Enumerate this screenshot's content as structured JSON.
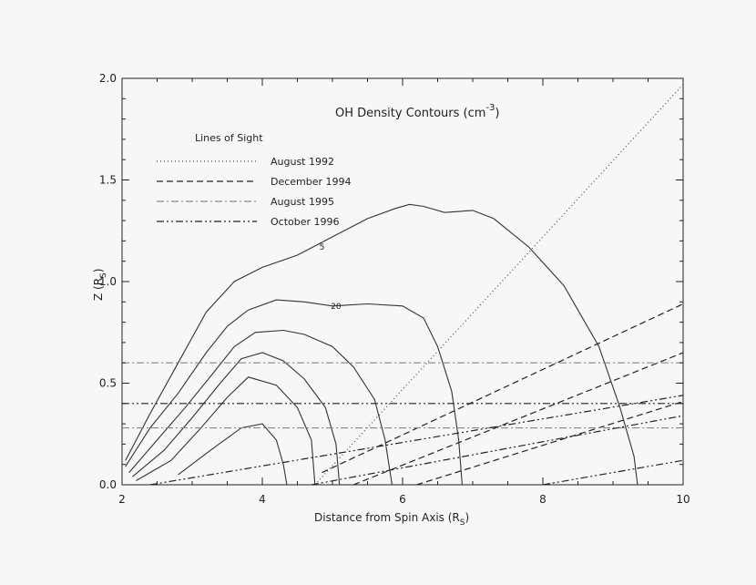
{
  "chart_data": {
    "type": "line",
    "title": "OH Density Contours (cm",
    "title_superscript": "-3",
    "xlabel": "Distance from Spin Axis (R",
    "xlabel_subscript": "S",
    "xlabel_close": ")",
    "ylabel": "Z (R",
    "ylabel_subscript": "S",
    "ylabel_close": ")",
    "xlim": [
      2,
      10
    ],
    "ylim": [
      0,
      2.0
    ],
    "x_ticks": [
      {
        "v": 2,
        "label": "2"
      },
      {
        "v": 4,
        "label": "4"
      },
      {
        "v": 6,
        "label": "6"
      },
      {
        "v": 8,
        "label": "8"
      },
      {
        "v": 10,
        "label": "10"
      }
    ],
    "y_ticks": [
      {
        "v": 0,
        "label": "0.0"
      },
      {
        "v": 0.5,
        "label": "0.5"
      },
      {
        "v": 1.0,
        "label": "1.0"
      },
      {
        "v": 1.5,
        "label": "1.5"
      },
      {
        "v": 2.0,
        "label": "2.0"
      }
    ],
    "grid": false,
    "legend_title": "Lines of Sight",
    "legend_placement": "top-left",
    "lines_of_sight": [
      {
        "name": "August 1992",
        "dash": "dotted",
        "color": "#444444",
        "lines": [
          [
            [
              4.75,
              0
            ],
            [
              10,
              1.97
            ]
          ]
        ]
      },
      {
        "name": "December 1994",
        "dash": "dashed",
        "color": "#222222",
        "lines": [
          [
            [
              4.85,
              0.06
            ],
            [
              10,
              0.89
            ]
          ],
          [
            [
              5.3,
              0
            ],
            [
              10,
              0.65
            ]
          ],
          [
            [
              6.2,
              0
            ],
            [
              10,
              0.41
            ]
          ]
        ]
      },
      {
        "name": "August 1995",
        "dash": "dashdot",
        "color": "#888888",
        "lines": [
          [
            [
              2,
              0.6
            ],
            [
              10,
              0.6
            ]
          ],
          [
            [
              2,
              0.28
            ],
            [
              10,
              0.28
            ]
          ]
        ]
      },
      {
        "name": "October 1996",
        "dash": "dashdotdot",
        "color": "#222222",
        "lines": [
          [
            [
              2,
              0.4
            ],
            [
              10,
              0.4
            ]
          ],
          [
            [
              2.4,
              0
            ],
            [
              10,
              0.44
            ]
          ],
          [
            [
              4.7,
              0
            ],
            [
              10,
              0.34
            ]
          ],
          [
            [
              8.0,
              0
            ],
            [
              10,
              0.12
            ]
          ]
        ]
      }
    ],
    "contours": [
      {
        "label": "5",
        "label_at": [
          4.85,
          1.17
        ],
        "points": [
          [
            2.05,
            0.12
          ],
          [
            2.4,
            0.35
          ],
          [
            2.8,
            0.6
          ],
          [
            3.2,
            0.85
          ],
          [
            3.6,
            1.0
          ],
          [
            4.0,
            1.07
          ],
          [
            4.5,
            1.13
          ],
          [
            5.0,
            1.22
          ],
          [
            5.5,
            1.31
          ],
          [
            5.9,
            1.36
          ],
          [
            6.1,
            1.38
          ],
          [
            6.3,
            1.37
          ],
          [
            6.6,
            1.34
          ],
          [
            7.0,
            1.35
          ],
          [
            7.3,
            1.31
          ],
          [
            7.8,
            1.17
          ],
          [
            8.3,
            0.98
          ],
          [
            8.8,
            0.68
          ],
          [
            9.1,
            0.38
          ],
          [
            9.3,
            0.14
          ],
          [
            9.35,
            0
          ]
        ]
      },
      {
        "label": "20",
        "label_at": [
          5.05,
          0.88
        ],
        "points": [
          [
            2.05,
            0.09
          ],
          [
            2.4,
            0.28
          ],
          [
            2.8,
            0.45
          ],
          [
            3.2,
            0.65
          ],
          [
            3.5,
            0.78
          ],
          [
            3.8,
            0.86
          ],
          [
            4.2,
            0.91
          ],
          [
            4.6,
            0.9
          ],
          [
            5.0,
            0.88
          ],
          [
            5.5,
            0.89
          ],
          [
            6.0,
            0.88
          ],
          [
            6.3,
            0.82
          ],
          [
            6.5,
            0.68
          ],
          [
            6.7,
            0.46
          ],
          [
            6.8,
            0.22
          ],
          [
            6.85,
            0
          ]
        ]
      },
      {
        "label": "",
        "label_at": null,
        "points": [
          [
            2.1,
            0.06
          ],
          [
            2.5,
            0.22
          ],
          [
            2.9,
            0.38
          ],
          [
            3.3,
            0.55
          ],
          [
            3.6,
            0.68
          ],
          [
            3.9,
            0.75
          ],
          [
            4.3,
            0.76
          ],
          [
            4.6,
            0.74
          ],
          [
            5.0,
            0.68
          ],
          [
            5.3,
            0.58
          ],
          [
            5.6,
            0.42
          ],
          [
            5.75,
            0.22
          ],
          [
            5.85,
            0
          ]
        ]
      },
      {
        "label": "",
        "label_at": null,
        "points": [
          [
            2.15,
            0.04
          ],
          [
            2.6,
            0.17
          ],
          [
            3.0,
            0.33
          ],
          [
            3.4,
            0.5
          ],
          [
            3.7,
            0.62
          ],
          [
            4.0,
            0.65
          ],
          [
            4.3,
            0.61
          ],
          [
            4.6,
            0.52
          ],
          [
            4.9,
            0.38
          ],
          [
            5.05,
            0.2
          ],
          [
            5.1,
            0
          ]
        ]
      },
      {
        "label": "",
        "label_at": null,
        "points": [
          [
            2.2,
            0.02
          ],
          [
            2.7,
            0.12
          ],
          [
            3.1,
            0.27
          ],
          [
            3.5,
            0.43
          ],
          [
            3.8,
            0.53
          ],
          [
            4.2,
            0.49
          ],
          [
            4.5,
            0.38
          ],
          [
            4.7,
            0.22
          ],
          [
            4.75,
            0
          ]
        ]
      },
      {
        "label": "",
        "label_at": null,
        "points": [
          [
            2.8,
            0.05
          ],
          [
            3.3,
            0.18
          ],
          [
            3.7,
            0.28
          ],
          [
            4.0,
            0.3
          ],
          [
            4.2,
            0.22
          ],
          [
            4.3,
            0.1
          ],
          [
            4.35,
            0
          ]
        ]
      }
    ]
  }
}
